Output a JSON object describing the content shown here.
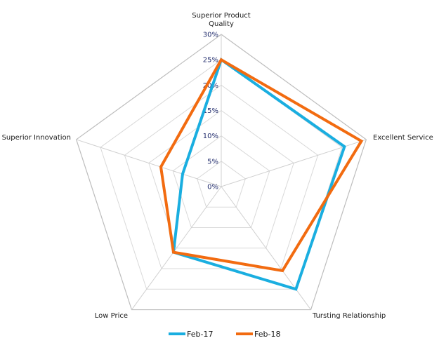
{
  "chart_data": {
    "type": "radar",
    "title": "",
    "categories": [
      "Superior Product Quality",
      "Excellent Service",
      "Tursting Relationship",
      "Low Price",
      "Superior Innovation"
    ],
    "category_lines": [
      [
        "Superior Product",
        "Quality"
      ],
      [
        "Excellent Service"
      ],
      [
        "Tursting Relationship"
      ],
      [
        "Low Price"
      ],
      [
        "Superior Innovation"
      ]
    ],
    "ticks": [
      "0%",
      "5%",
      "10%",
      "15%",
      "20%",
      "25%",
      "30%"
    ],
    "rlim": [
      0,
      30
    ],
    "grid": true,
    "legend_position": "bottom",
    "series": [
      {
        "name": "Feb-17",
        "color": "#1aaee0",
        "values": [
          25,
          25.5,
          25,
          16,
          8
        ]
      },
      {
        "name": "Feb-18",
        "color": "#f26b10",
        "values": [
          25,
          29,
          20.5,
          16,
          12.5
        ]
      }
    ]
  }
}
